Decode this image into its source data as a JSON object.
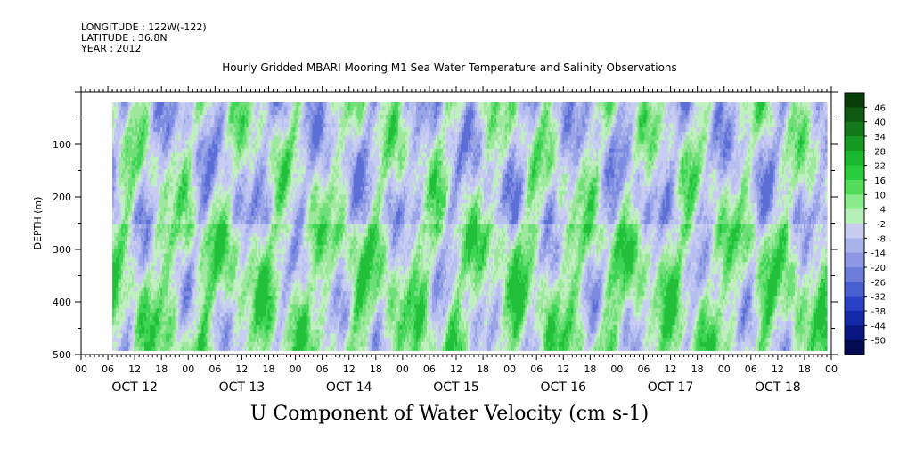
{
  "header": {
    "longitude": "LONGITUDE : 122W(-122)",
    "latitude": "LATITUDE : 36.8N",
    "year": "YEAR : 2012"
  },
  "caption": "U Component of Water Velocity (cm s-1)",
  "chart_data": {
    "type": "heatmap",
    "title": "Hourly Gridded MBARI Mooring M1 Sea Water Temperature and Salinity Observations",
    "xlabel": "",
    "ylabel": "DEPTH (m)",
    "x_range_hours": [
      0,
      168
    ],
    "x_hour_ticks": [
      "00",
      "06",
      "12",
      "18",
      "00",
      "06",
      "12",
      "18",
      "00",
      "06",
      "12",
      "18",
      "00",
      "06",
      "12",
      "18",
      "00",
      "06",
      "12",
      "18",
      "00",
      "06",
      "12",
      "18",
      "00",
      "06",
      "12",
      "18",
      "00"
    ],
    "x_day_labels": [
      "OCT 12",
      "OCT 13",
      "OCT 14",
      "OCT 15",
      "OCT 16",
      "OCT 17",
      "OCT 18"
    ],
    "y_range": [
      500,
      0
    ],
    "y_ticks": [
      100,
      200,
      300,
      400,
      500
    ],
    "data_extent": {
      "start_hour": 7,
      "end_hour": 167,
      "min_depth": 20,
      "max_depth": 485
    },
    "colorbar": {
      "labels": [
        "46",
        "40",
        "34",
        "28",
        "22",
        "16",
        "10",
        "4",
        "-2",
        "-8",
        "-14",
        "-20",
        "-26",
        "-32",
        "-38",
        "-44",
        "-50"
      ],
      "colors": [
        "#0a3d0a",
        "#0f5a12",
        "#13781a",
        "#169a24",
        "#19b82e",
        "#2acc3e",
        "#52dc5a",
        "#8aeb8a",
        "#b6f0b8",
        "#c8cdf0",
        "#aab2ea",
        "#8f98e4",
        "#6e7ed8",
        "#4a5fd0",
        "#2a40c4",
        "#1428a8",
        "#0a1680",
        "#050b50"
      ]
    },
    "grid": false,
    "legend": "right colorbar"
  }
}
